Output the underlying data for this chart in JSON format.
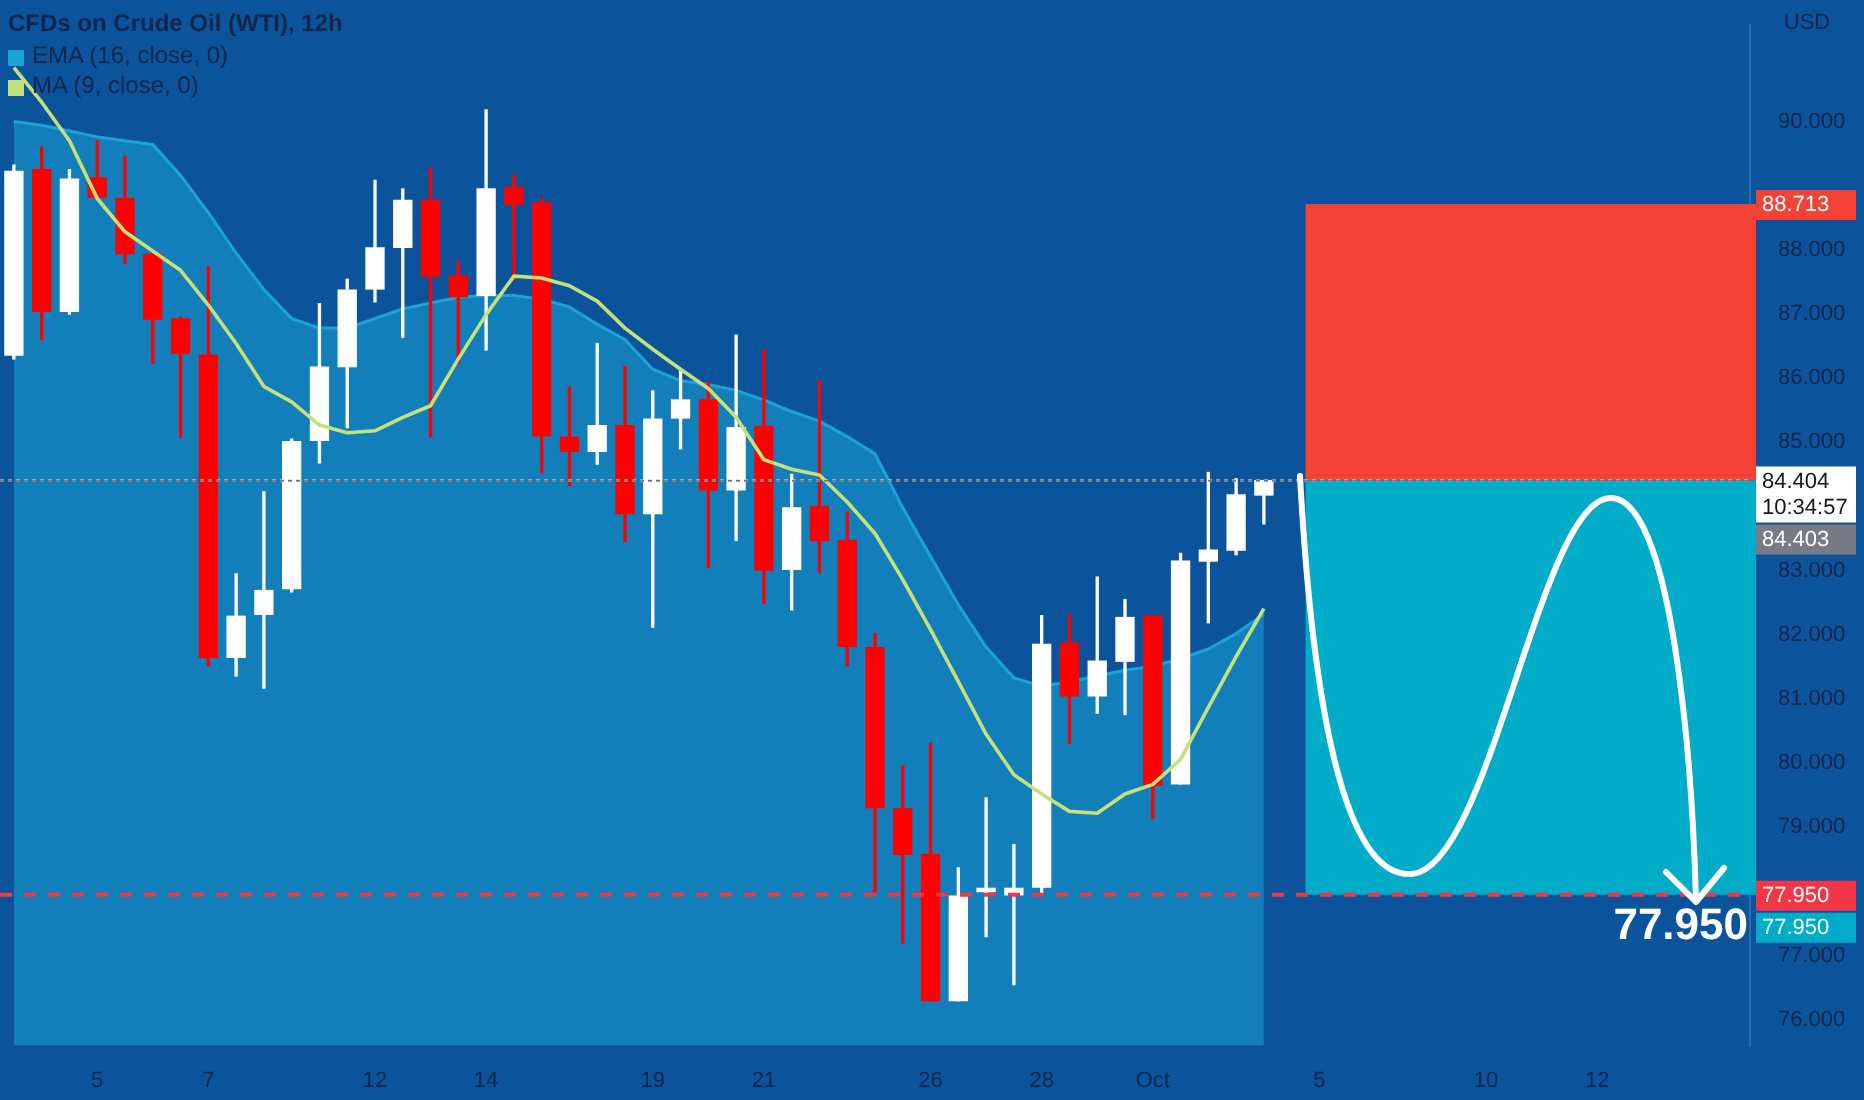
{
  "chart_data": {
    "type": "candlestick",
    "title": "CFDs on Crude Oil (WTI), 12h",
    "ylabel": "USD",
    "categories": [
      null,
      null,
      null,
      "5",
      null,
      null,
      null,
      "7",
      null,
      null,
      null,
      null,
      null,
      "12",
      null,
      null,
      null,
      "14",
      null,
      null,
      null,
      null,
      null,
      "19",
      null,
      null,
      null,
      "21",
      null,
      null,
      null,
      null,
      null,
      "26",
      null,
      null,
      null,
      "28",
      null,
      null,
      null,
      "Oct",
      null,
      null,
      null,
      null,
      null,
      "5",
      null,
      null,
      null,
      null,
      null,
      "10",
      null,
      null,
      null,
      "12",
      null,
      null,
      null,
      null,
      null
    ],
    "series": [
      {
        "type": "candlestick",
        "ohlc": [
          [
            86.36,
            89.32,
            86.3,
            89.22
          ],
          [
            89.25,
            89.6,
            86.6,
            87.04
          ],
          [
            87.04,
            89.25,
            87.0,
            89.1
          ],
          [
            89.12,
            89.7,
            88.8,
            88.82
          ],
          [
            88.8,
            89.45,
            87.79,
            87.94
          ],
          [
            87.93,
            87.95,
            86.23,
            86.92
          ],
          [
            86.92,
            86.95,
            85.08,
            86.39
          ],
          [
            86.36,
            87.74,
            81.52,
            81.65
          ],
          [
            81.65,
            82.95,
            81.36,
            82.29
          ],
          [
            82.32,
            84.23,
            81.17,
            82.69
          ],
          [
            82.72,
            85.05,
            82.67,
            85.01
          ],
          [
            85.03,
            87.16,
            84.68,
            86.17
          ],
          [
            86.18,
            87.54,
            85.23,
            87.37
          ],
          [
            87.39,
            89.08,
            87.19,
            88.03
          ],
          [
            88.04,
            88.95,
            86.64,
            88.77
          ],
          [
            88.77,
            89.28,
            85.08,
            87.59
          ],
          [
            87.59,
            87.81,
            86.23,
            87.27
          ],
          [
            87.29,
            90.18,
            86.44,
            88.95
          ],
          [
            88.97,
            89.15,
            87.54,
            88.71
          ],
          [
            88.73,
            88.8,
            84.53,
            85.1
          ],
          [
            85.08,
            85.86,
            84.33,
            84.86
          ],
          [
            84.86,
            86.54,
            84.66,
            85.26
          ],
          [
            85.26,
            86.18,
            83.45,
            83.89
          ],
          [
            83.89,
            85.8,
            82.12,
            85.36
          ],
          [
            85.38,
            86.11,
            84.9,
            85.66
          ],
          [
            85.66,
            85.93,
            83.05,
            84.26
          ],
          [
            84.26,
            86.67,
            83.47,
            85.23
          ],
          [
            85.25,
            86.44,
            82.49,
            83.01
          ],
          [
            83.02,
            84.5,
            82.39,
            83.98
          ],
          [
            84.0,
            85.96,
            82.97,
            83.47
          ],
          [
            83.47,
            83.91,
            81.52,
            81.82
          ],
          [
            81.8,
            82.02,
            78.0,
            79.31
          ],
          [
            79.29,
            79.96,
            77.2,
            78.58
          ],
          [
            78.58,
            80.31,
            76.3,
            76.3
          ],
          [
            76.3,
            78.37,
            76.3,
            77.93
          ],
          [
            78.0,
            79.46,
            77.3,
            78.05
          ],
          [
            77.95,
            78.73,
            76.55,
            78.05
          ],
          [
            78.07,
            82.3,
            77.95,
            81.85
          ],
          [
            81.87,
            82.32,
            80.31,
            81.05
          ],
          [
            81.05,
            82.9,
            80.78,
            81.59
          ],
          [
            81.59,
            82.55,
            80.76,
            82.27
          ],
          [
            82.29,
            82.3,
            79.14,
            79.66
          ],
          [
            79.68,
            83.27,
            79.68,
            83.15
          ],
          [
            83.15,
            84.53,
            82.19,
            83.32
          ],
          [
            83.32,
            84.43,
            83.25,
            84.18
          ],
          [
            84.18,
            84.404,
            83.73,
            84.404
          ],
          null,
          null,
          null,
          null,
          null,
          null,
          null,
          null,
          null,
          null,
          null,
          null,
          null,
          null,
          null,
          null,
          null
        ],
        "colors": [
          "#ffffff",
          "#ff0000",
          "#ffffff",
          "#ff0000",
          "#ff0000",
          "#ff0000",
          "#ff0000",
          "#ff0000",
          "#ffffff",
          "#ffffff",
          "#ffffff",
          "#ffffff",
          "#ffffff",
          "#ffffff",
          "#ffffff",
          "#ff0000",
          "#ff0000",
          "#ffffff",
          "#ff0000",
          "#ff0000",
          "#ff0000",
          "#ffffff",
          "#ff0000",
          "#ffffff",
          "#ffffff",
          "#ff0000",
          "#ffffff",
          "#ff0000",
          "#ffffff",
          "#ff0000",
          "#ff0000",
          "#ff0000",
          "#ff0000",
          "#ff0000",
          "#ffffff",
          "#ffffff",
          "#ffffff",
          "#ffffff",
          "#ff0000",
          "#ffffff",
          "#ffffff",
          "#ff0000",
          "#ffffff",
          "#ffffff",
          "#ffffff",
          "#ffffff",
          null,
          null,
          null,
          null,
          null,
          null,
          null,
          null,
          null,
          null,
          null,
          null,
          null,
          null,
          null,
          null,
          null
        ]
      },
      {
        "type": "area",
        "name": "EMA (16, close, 0)",
        "color": "#1aa3d6",
        "values": [
          90.0,
          89.94,
          89.85,
          89.76,
          89.7,
          89.64,
          89.16,
          88.58,
          87.95,
          87.38,
          86.93,
          86.78,
          86.78,
          86.93,
          87.08,
          87.17,
          87.26,
          87.29,
          87.29,
          87.23,
          87.11,
          86.84,
          86.6,
          86.14,
          85.96,
          85.9,
          85.81,
          85.66,
          85.48,
          85.33,
          85.09,
          84.82,
          83.98,
          83.22,
          82.47,
          81.81,
          81.33,
          81.2,
          81.27,
          81.36,
          81.45,
          81.51,
          81.63,
          81.78,
          82.02,
          82.32,
          null,
          null,
          null,
          null,
          null,
          null,
          null,
          null,
          null,
          null,
          null,
          null,
          null,
          null,
          null,
          null,
          null
        ]
      },
      {
        "type": "line",
        "name": "MA (9, close, 0)",
        "color": "#c5e17a",
        "values": [
          90.84,
          90.3,
          89.7,
          88.8,
          88.28,
          87.98,
          87.68,
          87.14,
          86.54,
          85.87,
          85.63,
          85.27,
          85.15,
          85.18,
          85.39,
          85.57,
          86.3,
          86.99,
          87.59,
          87.56,
          87.44,
          87.2,
          86.78,
          86.45,
          86.14,
          85.84,
          85.39,
          84.73,
          84.58,
          84.49,
          84.07,
          83.58,
          82.86,
          82.08,
          81.27,
          80.45,
          79.82,
          79.52,
          79.25,
          79.22,
          79.52,
          79.67,
          80.06,
          80.87,
          81.66,
          82.41,
          null,
          null,
          null,
          null,
          null,
          null,
          null,
          null,
          null,
          null,
          null,
          null,
          null,
          null,
          null,
          null,
          null
        ]
      }
    ],
    "ylim": [
      75.6,
      91.5
    ],
    "yticks": [
      {
        "value": 76,
        "label": "76.000"
      },
      {
        "value": 77,
        "label": "77.000"
      },
      {
        "value": 79,
        "label": "79.000"
      },
      {
        "value": 80,
        "label": "80.000"
      },
      {
        "value": 81,
        "label": "81.000"
      },
      {
        "value": 82,
        "label": "82.000"
      },
      {
        "value": 83,
        "label": "83.000"
      },
      {
        "value": 85,
        "label": "85.000"
      },
      {
        "value": 86,
        "label": "86.000"
      },
      {
        "value": 87,
        "label": "87.000"
      },
      {
        "value": 88,
        "label": "88.000"
      },
      {
        "value": 90,
        "label": "90.000"
      }
    ],
    "ref_lines": [
      {
        "axis": "y",
        "value": 84.404,
        "label": "84.404",
        "color": "#ffffff",
        "line_style": "dotted"
      },
      {
        "axis": "y",
        "value": 84.403,
        "label": "84.403",
        "color": "#787b86",
        "line_style": "dotted"
      },
      {
        "axis": "y",
        "value": 77.95,
        "label": "77.950",
        "color": "#f23645",
        "line_style": "dashed"
      }
    ],
    "bands": [
      {
        "axis": "y",
        "from": 84.404,
        "to": 88.713,
        "label": "88.713",
        "color": "#f44336"
      },
      {
        "axis": "y",
        "from": 84.404,
        "to": 77.95,
        "label": "77.950",
        "color": "#00acc8"
      }
    ],
    "annotations": [
      "10:34:57",
      {
        "text": "77.950",
        "y": 77.95
      }
    ],
    "legend": "top left"
  }
}
